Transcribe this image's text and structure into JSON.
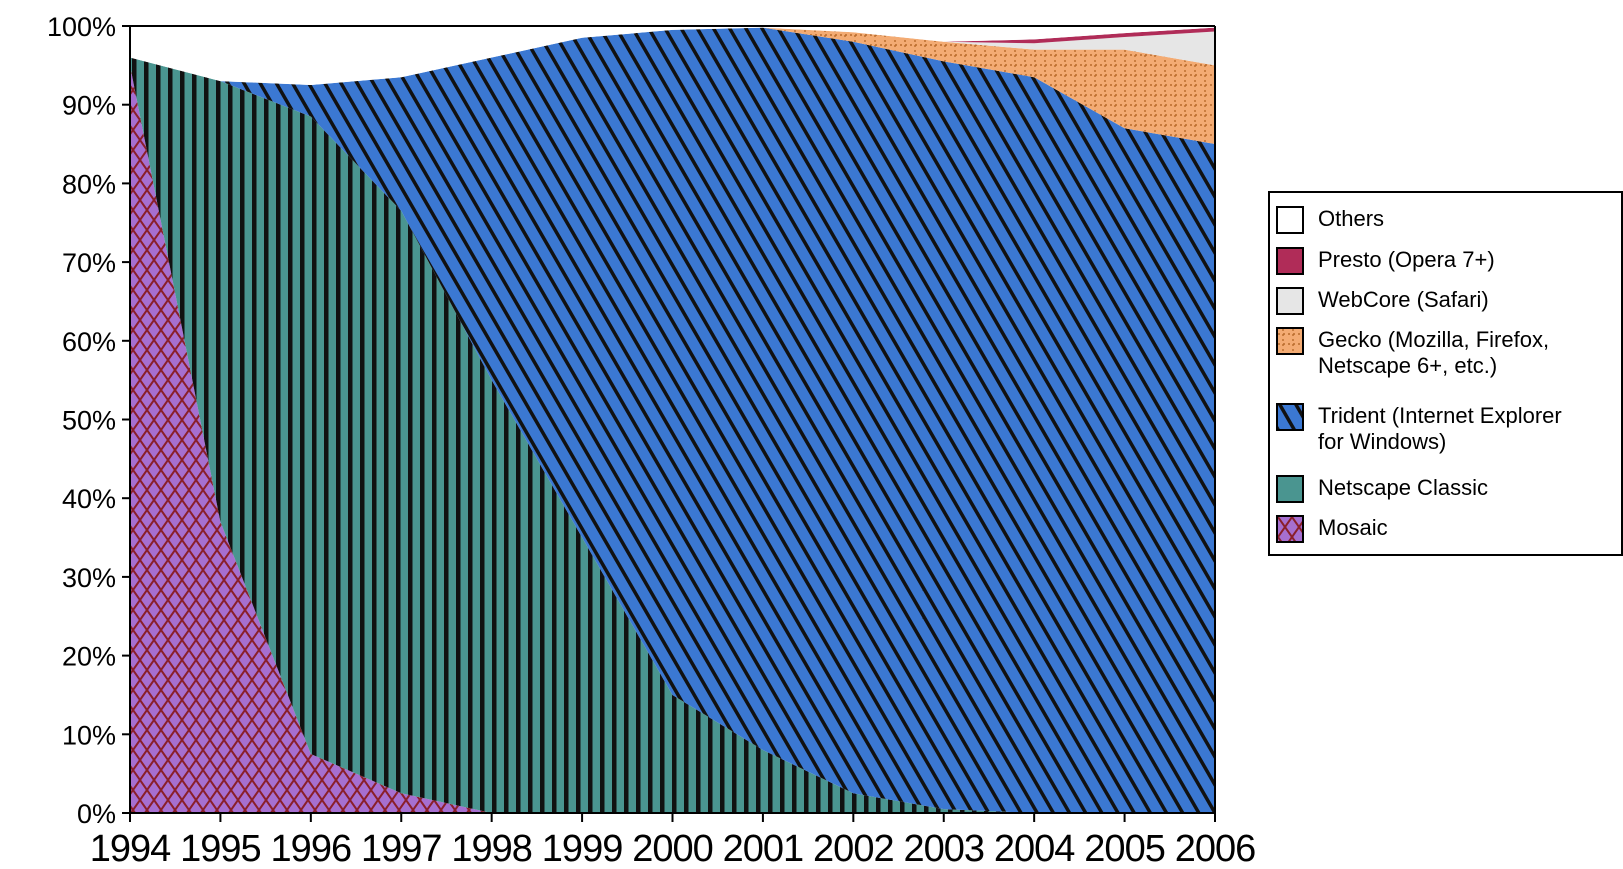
{
  "chart_data": {
    "type": "area",
    "stacked": true,
    "x": [
      "1994",
      "1995",
      "1996",
      "1997",
      "1998",
      "1999",
      "2000",
      "2001",
      "2002",
      "2003",
      "2004",
      "2005",
      "2006"
    ],
    "ylim": [
      0,
      100
    ],
    "yticks": [
      "0%",
      "10%",
      "20%",
      "30%",
      "40%",
      "50%",
      "60%",
      "70%",
      "80%",
      "90%",
      "100%"
    ],
    "legend_position": "right",
    "series": [
      {
        "name": "Mosaic",
        "color": "#a66fd0",
        "pattern": "crosshatch",
        "values": [
          95,
          37,
          7.5,
          2.5,
          0,
          0,
          0,
          0,
          0,
          0,
          0,
          0,
          0
        ]
      },
      {
        "name": "Netscape Classic",
        "color": "#4a9590",
        "pattern": "vertical",
        "values": [
          1,
          56,
          81,
          74,
          55,
          35,
          15,
          8,
          2.5,
          0.5,
          0,
          0,
          0
        ]
      },
      {
        "name": "Trident (Internet Explorer for Windows)",
        "color": "#3b78d2",
        "pattern": "diagonal",
        "values": [
          0,
          0,
          4,
          17,
          41,
          63.5,
          84.5,
          91.8,
          95.5,
          95,
          93.5,
          87,
          85
        ]
      },
      {
        "name": "Gecko (Mozilla, Firefox, Netscape 6+, etc.)",
        "color": "#f3ab73",
        "pattern": "dots",
        "values": [
          0,
          0,
          0,
          0,
          0,
          0,
          0,
          0,
          1.2,
          2.5,
          3.5,
          10,
          10
        ]
      },
      {
        "name": "WebCore (Safari)",
        "color": "#e6e6e6",
        "pattern": "none",
        "values": [
          0,
          0,
          0,
          0,
          0,
          0,
          0,
          0,
          0,
          0,
          0.8,
          1.6,
          4.3
        ]
      },
      {
        "name": "Presto (Opera 7+)",
        "color": "#b02c58",
        "pattern": "none",
        "values": [
          0,
          0,
          0,
          0,
          0,
          0,
          0,
          0,
          0,
          0,
          0.5,
          0.5,
          0.5
        ]
      },
      {
        "name": "Others",
        "color": "#ffffff",
        "pattern": "none",
        "values": [
          4,
          7,
          7.5,
          6.5,
          4,
          1.5,
          0.5,
          0.2,
          0.8,
          2,
          1.7,
          0.9,
          0.2
        ]
      }
    ]
  },
  "legend": {
    "items": [
      {
        "key": "others",
        "label": "Others"
      },
      {
        "key": "presto",
        "label": "Presto (Opera 7+)"
      },
      {
        "key": "webcore",
        "label": "WebCore (Safari)"
      },
      {
        "key": "gecko",
        "label": "Gecko (Mozilla, Firefox,\nNetscape 6+, etc.)"
      },
      {
        "key": "trident",
        "label": "Trident (Internet Explorer\nfor Windows)"
      },
      {
        "key": "netscape",
        "label": "Netscape Classic"
      },
      {
        "key": "mosaic",
        "label": "Mosaic"
      }
    ]
  }
}
